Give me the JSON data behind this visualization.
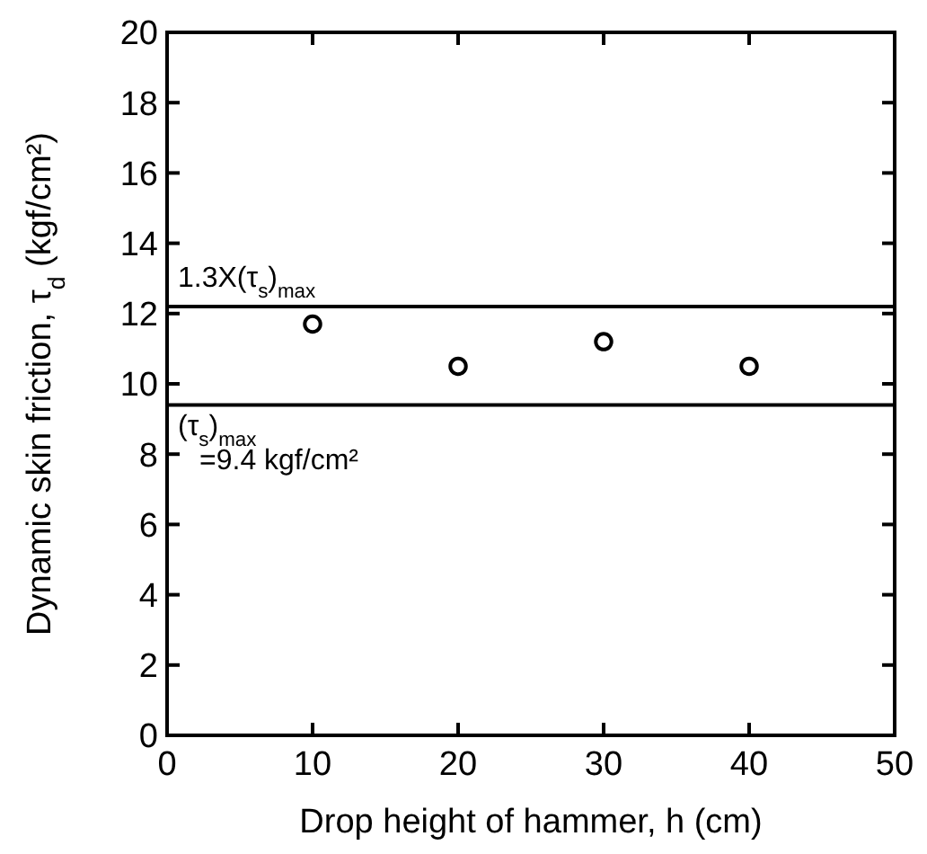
{
  "chart_data": {
    "type": "scatter",
    "xlabel": "Drop height of hammer, h (cm)",
    "ylabel": "Dynamic skin friction, τ$_{d}$ (kgf/cm²)",
    "x": [
      10,
      20,
      30,
      40
    ],
    "series": [
      {
        "color": "#000000",
        "values": [
          11.7,
          10.5,
          11.2,
          10.5
        ]
      }
    ],
    "xlim": [
      0,
      50
    ],
    "xticks": [
      0,
      10,
      20,
      30,
      40,
      50
    ],
    "ylim": [
      0,
      20
    ],
    "yticks": [
      0,
      2,
      4,
      6,
      8,
      10,
      12,
      14,
      16,
      18,
      20
    ],
    "marker": "circle",
    "grid": false,
    "ref_lines": [
      {
        "axis": "y",
        "value": 12.2,
        "label": "1.3X(τ$_{s}$)$_{max}$",
        "color": "#000000"
      },
      {
        "axis": "y",
        "value": 9.4,
        "label": "(τ$_{s}$)$_{max}$\n=9.4 kgf/cm²",
        "color": "#000000"
      }
    ]
  }
}
